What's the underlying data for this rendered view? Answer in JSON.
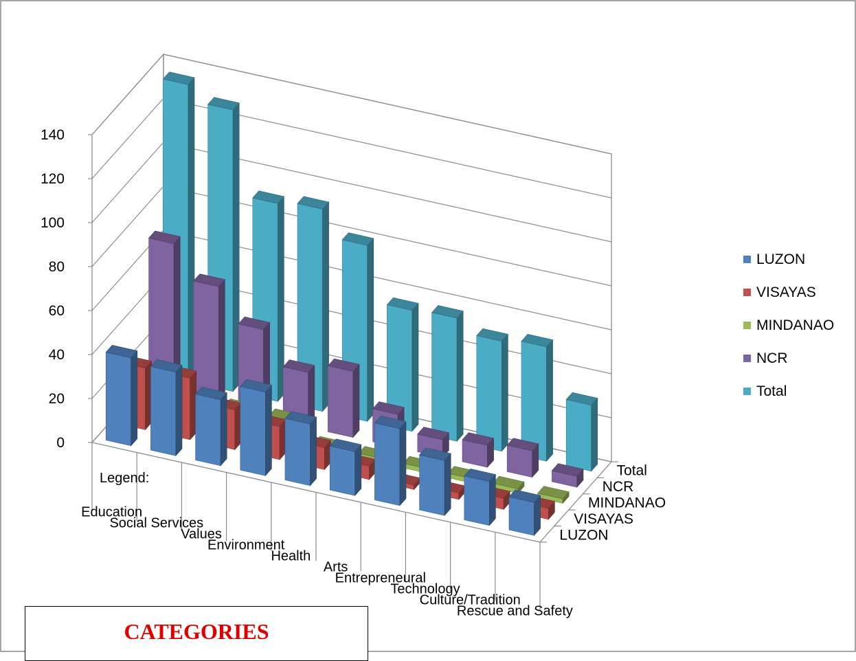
{
  "chart_data": {
    "type": "bar",
    "subtype": "3d-column",
    "categories": [
      "Education",
      "Social Services",
      "Values",
      "Environment",
      "Health",
      "Arts",
      "Entrepreneural",
      "Technology",
      "Culture/Tradition",
      "Rescue and Safety"
    ],
    "series": [
      {
        "name": "LUZON",
        "color": "#4f81bd",
        "values": [
          40,
          38,
          30,
          38,
          28,
          20,
          35,
          25,
          20,
          15
        ]
      },
      {
        "name": "VISAYAS",
        "color": "#c0504d",
        "values": [
          28,
          28,
          18,
          15,
          10,
          6,
          2,
          3,
          5,
          5
        ]
      },
      {
        "name": "MINDANAO",
        "color": "#9bbb59",
        "values": [
          10,
          5,
          10,
          10,
          2,
          2,
          2,
          2,
          2,
          2
        ]
      },
      {
        "name": "NCR",
        "color": "#8064a2",
        "values": [
          70,
          55,
          40,
          25,
          30,
          15,
          8,
          10,
          12,
          5
        ]
      },
      {
        "name": "Total",
        "color": "#4bacc6",
        "values": [
          135,
          128,
          90,
          92,
          80,
          55,
          56,
          50,
          52,
          30
        ]
      }
    ],
    "ylim": [
      0,
      140
    ],
    "yticks": [
      0,
      20,
      40,
      60,
      80,
      100,
      120,
      140
    ],
    "depth_labels": [
      "Total",
      "NCR",
      "MINDANAO",
      "VISAYAS",
      "LUZON"
    ],
    "legend_position": "right",
    "annotation": "Legend:",
    "grid": true
  },
  "caption_box": {
    "title": "CATEGORIES"
  }
}
